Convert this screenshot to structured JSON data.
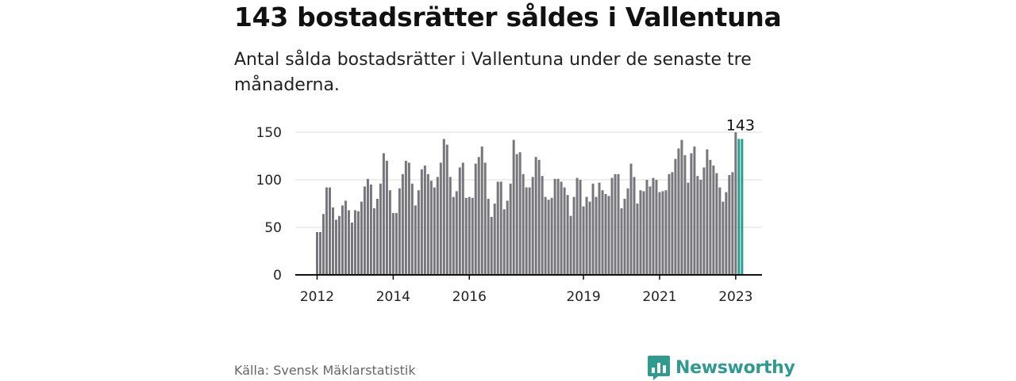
{
  "header": {
    "title": "143 bostadsrätter såldes i Vallentuna",
    "subtitle": "Antal sålda bostadsrätter i Vallentuna under de senaste tre månaderna."
  },
  "footer": {
    "source": "Källa: Svensk Mäklarstatistik",
    "brand": "Newsworthy",
    "brand_icon": "bar-chart-speech-icon"
  },
  "colors": {
    "bar": "#77767c",
    "highlight": "#2a9d8f",
    "grid": "#dddddd",
    "axis": "#111111",
    "brand": "#2f9b8f"
  },
  "chart_data": {
    "type": "bar",
    "title": "143 bostadsrätter såldes i Vallentuna",
    "subtitle": "Antal sålda bostadsrätter i Vallentuna under de senaste tre månaderna.",
    "x_start": "2012-01",
    "interval": "month",
    "ylim": [
      0,
      150
    ],
    "yticks": [
      0,
      50,
      100,
      150
    ],
    "xtick_labels": [
      "2012",
      "2014",
      "2016",
      "2019",
      "2021",
      "2023"
    ],
    "xtick_years": [
      2012,
      2014,
      2016,
      2019,
      2021,
      2023
    ],
    "grid": true,
    "highlight_label": "143",
    "values": [
      45,
      45,
      64,
      92,
      92,
      71,
      58,
      62,
      73,
      78,
      68,
      55,
      68,
      67,
      77,
      93,
      101,
      95,
      70,
      80,
      96,
      128,
      120,
      89,
      65,
      65,
      91,
      106,
      120,
      118,
      96,
      73,
      89,
      111,
      115,
      106,
      99,
      92,
      103,
      118,
      143,
      137,
      103,
      82,
      88,
      113,
      118,
      81,
      82,
      81,
      117,
      124,
      135,
      118,
      80,
      61,
      75,
      98,
      98,
      69,
      78,
      96,
      142,
      127,
      129,
      106,
      92,
      92,
      103,
      124,
      121,
      104,
      82,
      79,
      81,
      101,
      101,
      98,
      92,
      84,
      62,
      82,
      102,
      100,
      72,
      82,
      77,
      96,
      82,
      97,
      89,
      85,
      83,
      102,
      106,
      106,
      70,
      80,
      91,
      117,
      103,
      75,
      89,
      88,
      100,
      93,
      102,
      100,
      87,
      88,
      89,
      106,
      108,
      122,
      133,
      142,
      126,
      97,
      128,
      135,
      104,
      100,
      113,
      132,
      121,
      115,
      107,
      92,
      77,
      87,
      105,
      108,
      150,
      143,
      143
    ]
  }
}
